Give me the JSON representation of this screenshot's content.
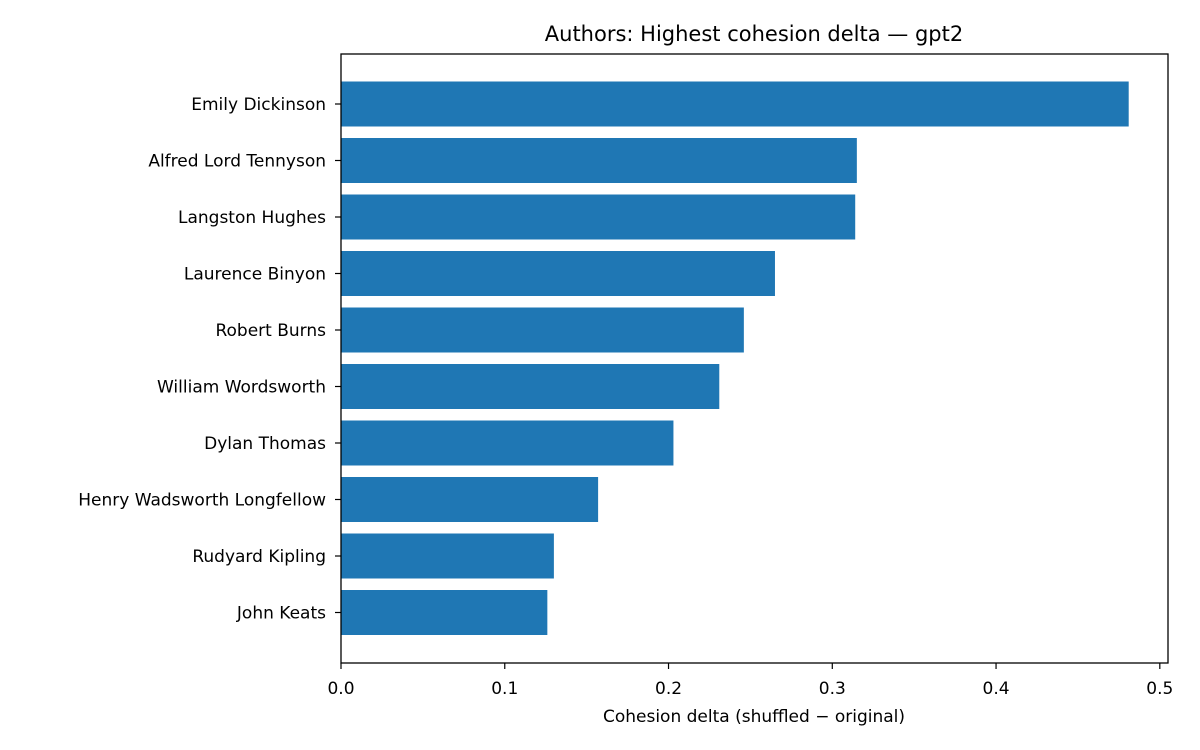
{
  "chart_data": {
    "type": "bar",
    "orientation": "horizontal",
    "title": "Authors: Highest cohesion delta — gpt2",
    "xlabel": "Cohesion delta (shuffled − original)",
    "ylabel": "",
    "categories": [
      "Emily Dickinson",
      "Alfred Lord Tennyson",
      "Langston Hughes",
      "Laurence Binyon",
      "Robert Burns",
      "William Wordsworth",
      "Dylan Thomas",
      "Henry Wadsworth Longfellow",
      "Rudyard Kipling",
      "John Keats"
    ],
    "values": [
      0.481,
      0.315,
      0.314,
      0.265,
      0.246,
      0.231,
      0.203,
      0.157,
      0.13,
      0.126
    ],
    "xlim": [
      0,
      0.505
    ],
    "xticks": [
      0.0,
      0.1,
      0.2,
      0.3,
      0.4,
      0.5
    ],
    "xtick_labels": [
      "0.0",
      "0.1",
      "0.2",
      "0.3",
      "0.4",
      "0.5"
    ],
    "grid": false,
    "legend": "none",
    "bar_color": "#1f77b4"
  }
}
